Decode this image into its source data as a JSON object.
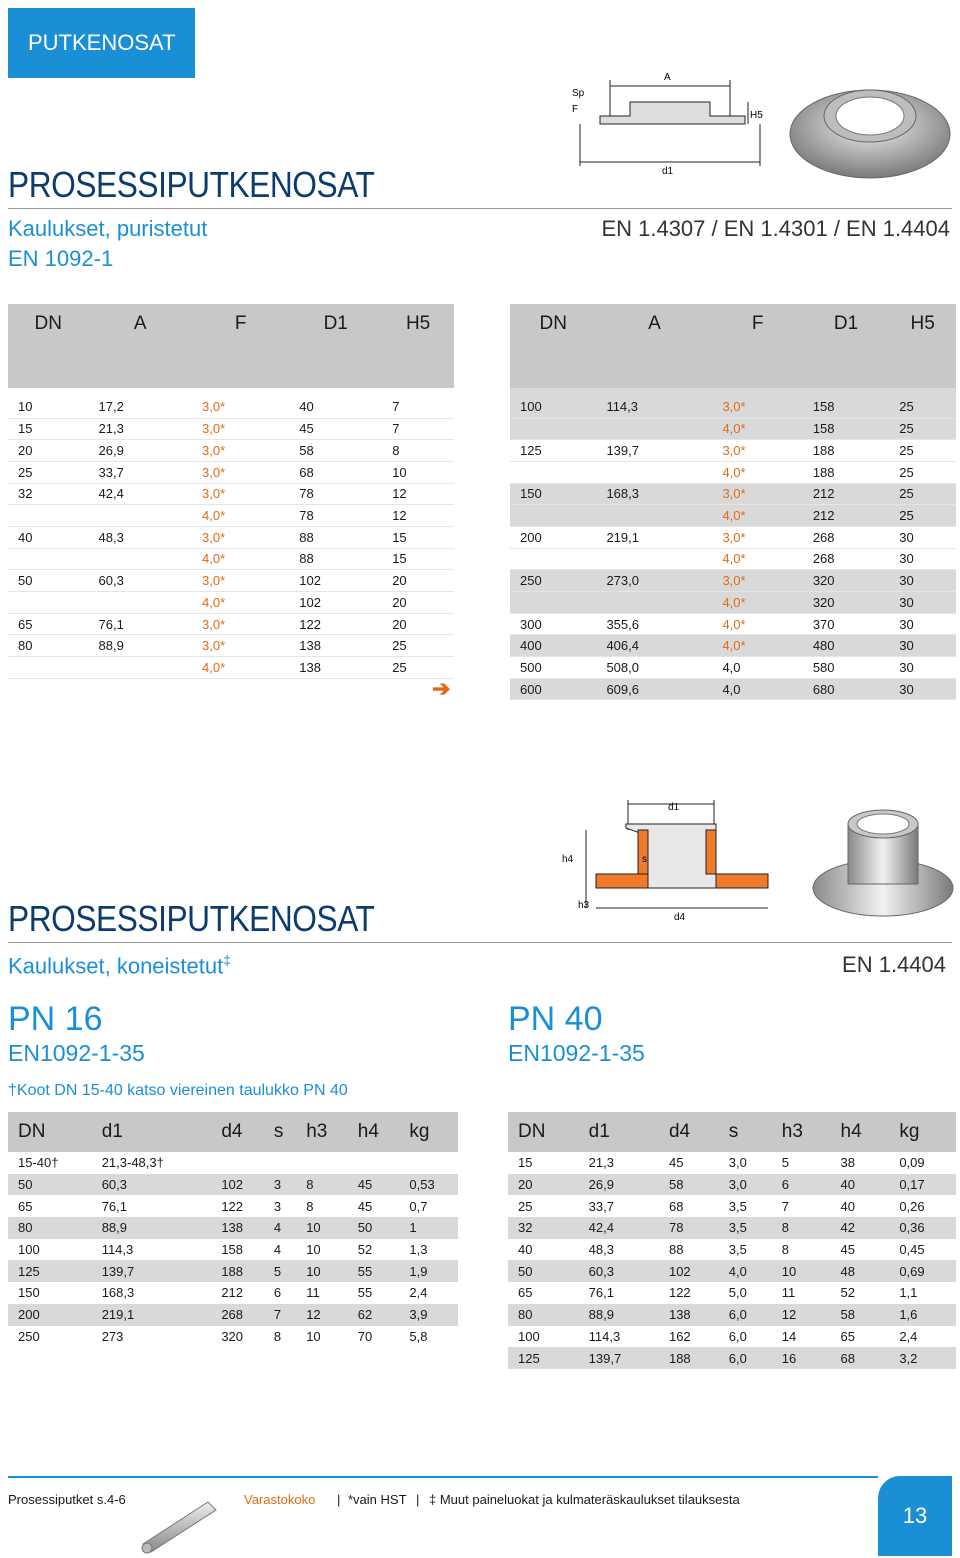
{
  "header": {
    "tab": "PUTKENOSAT"
  },
  "section1": {
    "title": "PROSESSIPUTKENOSAT",
    "subtitle": "Kaulukset, puristetut",
    "norm": "EN 1092-1",
    "materials": "EN 1.4307 / EN 1.4301 / EN 1.4404",
    "drawing_labels": {
      "sp": "Sp",
      "f": "F",
      "a": "A",
      "h5": "H5",
      "d1": "d1"
    },
    "columns": [
      "DN",
      "A",
      "F",
      "D1",
      "H5"
    ],
    "left_rows": [
      {
        "dn": "10",
        "a": "17,2",
        "f": "3,0*",
        "d1": "40",
        "h5": "7",
        "or": true,
        "g": false
      },
      {
        "dn": "15",
        "a": "21,3",
        "f": "3,0*",
        "d1": "45",
        "h5": "7",
        "or": true,
        "g": false
      },
      {
        "dn": "20",
        "a": "26,9",
        "f": "3,0*",
        "d1": "58",
        "h5": "8",
        "or": true,
        "g": false
      },
      {
        "dn": "25",
        "a": "33,7",
        "f": "3,0*",
        "d1": "68",
        "h5": "10",
        "or": true,
        "g": false
      },
      {
        "dn": "32",
        "a": "42,4",
        "f": "3,0*",
        "d1": "78",
        "h5": "12",
        "or": true,
        "g": false
      },
      {
        "dn": "",
        "a": "",
        "f": "4,0*",
        "d1": "78",
        "h5": "12",
        "or": true,
        "g": false
      },
      {
        "dn": "40",
        "a": "48,3",
        "f": "3,0*",
        "d1": "88",
        "h5": "15",
        "or": true,
        "g": false
      },
      {
        "dn": "",
        "a": "",
        "f": "4,0*",
        "d1": "88",
        "h5": "15",
        "or": true,
        "g": false
      },
      {
        "dn": "50",
        "a": "60,3",
        "f": "3,0*",
        "d1": "102",
        "h5": "20",
        "or": true,
        "g": false
      },
      {
        "dn": "",
        "a": "",
        "f": "4,0*",
        "d1": "102",
        "h5": "20",
        "or": true,
        "g": false
      },
      {
        "dn": "65",
        "a": "76,1",
        "f": "3,0*",
        "d1": "122",
        "h5": "20",
        "or": true,
        "g": false
      },
      {
        "dn": "80",
        "a": "88,9",
        "f": "3,0*",
        "d1": "138",
        "h5": "25",
        "or": true,
        "g": false
      },
      {
        "dn": "",
        "a": "",
        "f": "4,0*",
        "d1": "138",
        "h5": "25",
        "or": true,
        "g": false
      }
    ],
    "right_rows": [
      {
        "dn": "100",
        "a": "114,3",
        "f": "3,0*",
        "d1": "158",
        "h5": "25",
        "or": true,
        "g": true
      },
      {
        "dn": "",
        "a": "",
        "f": "4,0*",
        "d1": "158",
        "h5": "25",
        "or": true,
        "g": true
      },
      {
        "dn": "125",
        "a": "139,7",
        "f": "3,0*",
        "d1": "188",
        "h5": "25",
        "or": true,
        "g": false
      },
      {
        "dn": "",
        "a": "",
        "f": "4,0*",
        "d1": "188",
        "h5": "25",
        "or": true,
        "g": false
      },
      {
        "dn": "150",
        "a": "168,3",
        "f": "3,0*",
        "d1": "212",
        "h5": "25",
        "or": true,
        "g": true
      },
      {
        "dn": "",
        "a": "",
        "f": "4,0*",
        "d1": "212",
        "h5": "25",
        "or": true,
        "g": true
      },
      {
        "dn": "200",
        "a": "219,1",
        "f": "3,0*",
        "d1": "268",
        "h5": "30",
        "or": true,
        "g": false
      },
      {
        "dn": "",
        "a": "",
        "f": "4,0*",
        "d1": "268",
        "h5": "30",
        "or": true,
        "g": false
      },
      {
        "dn": "250",
        "a": "273,0",
        "f": "3,0*",
        "d1": "320",
        "h5": "30",
        "or": true,
        "g": true
      },
      {
        "dn": "",
        "a": "",
        "f": "4,0*",
        "d1": "320",
        "h5": "30",
        "or": true,
        "g": true
      },
      {
        "dn": "300",
        "a": "355,6",
        "f": "4,0*",
        "d1": "370",
        "h5": "30",
        "or": true,
        "g": false
      },
      {
        "dn": "400",
        "a": "406,4",
        "f": "4,0*",
        "d1": "480",
        "h5": "30",
        "or": true,
        "g": true
      },
      {
        "dn": "500",
        "a": "508,0",
        "f": "4,0",
        "d1": "580",
        "h5": "30",
        "or": false,
        "g": false
      },
      {
        "dn": "600",
        "a": "609,6",
        "f": "4,0",
        "d1": "680",
        "h5": "30",
        "or": false,
        "g": true
      }
    ]
  },
  "section2": {
    "title": "PROSESSIPUTKENOSAT",
    "subtitle": "Kaulukset, koneistetut",
    "subtitle_mark": "‡",
    "material": "EN 1.4404",
    "drawing_labels": {
      "d1": "d1",
      "h4": "h4",
      "s": "s",
      "h3": "h3",
      "d4": "d4"
    },
    "pn16": {
      "label": "PN 16",
      "norm": "EN1092-1-35",
      "note": "†Koot DN  15-40 katso viereinen taulukko PN 40"
    },
    "pn40": {
      "label": "PN 40",
      "norm": "EN1092-1-35"
    },
    "columns": [
      "DN",
      "d1",
      "d4",
      "s",
      "h3",
      "h4",
      "kg"
    ],
    "pn16_rows": [
      [
        "15-40†",
        "21,3-48,3†",
        "",
        "",
        "",
        "",
        ""
      ],
      [
        "50",
        "60,3",
        "102",
        "3",
        "8",
        "45",
        "0,53"
      ],
      [
        "65",
        "76,1",
        "122",
        "3",
        "8",
        "45",
        "0,7"
      ],
      [
        "80",
        "88,9",
        "138",
        "4",
        "10",
        "50",
        "1"
      ],
      [
        "100",
        "114,3",
        "158",
        "4",
        "10",
        "52",
        "1,3"
      ],
      [
        "125",
        "139,7",
        "188",
        "5",
        "10",
        "55",
        "1,9"
      ],
      [
        "150",
        "168,3",
        "212",
        "6",
        "11",
        "55",
        "2,4"
      ],
      [
        "200",
        "219,1",
        "268",
        "7",
        "12",
        "62",
        "3,9"
      ],
      [
        "250",
        "273",
        "320",
        "8",
        "10",
        "70",
        "5,8"
      ]
    ],
    "pn40_rows": [
      [
        "15",
        "21,3",
        "45",
        "3,0",
        "5",
        "38",
        "0,09"
      ],
      [
        "20",
        "26,9",
        "58",
        "3,0",
        "6",
        "40",
        "0,17"
      ],
      [
        "25",
        "33,7",
        "68",
        "3,5",
        "7",
        "40",
        "0,26"
      ],
      [
        "32",
        "42,4",
        "78",
        "3,5",
        "8",
        "42",
        "0,36"
      ],
      [
        "40",
        "48,3",
        "88",
        "3,5",
        "8",
        "45",
        "0,45"
      ],
      [
        "50",
        "60,3",
        "102",
        "4,0",
        "10",
        "48",
        "0,69"
      ],
      [
        "65",
        "76,1",
        "122",
        "5,0",
        "11",
        "52",
        "1,1"
      ],
      [
        "80",
        "88,9",
        "138",
        "6,0",
        "12",
        "58",
        "1,6"
      ],
      [
        "100",
        "114,3",
        "162",
        "6,0",
        "14",
        "65",
        "2,4"
      ],
      [
        "125",
        "139,7",
        "188",
        "6,0",
        "16",
        "68",
        "3,2"
      ]
    ]
  },
  "footer": {
    "ref": "Prosessiputket s.4-6",
    "stock": "Varastokoko",
    "sep": "|",
    "hst": "*vain HST",
    "sep2": "|",
    "note": "‡ Muut paineluokat ja kulmateräskaulukset tilauksesta",
    "page": "13"
  },
  "colors": {
    "accent": "#1a8fd6",
    "title": "#0d3b6e",
    "orange": "#e06a16"
  }
}
